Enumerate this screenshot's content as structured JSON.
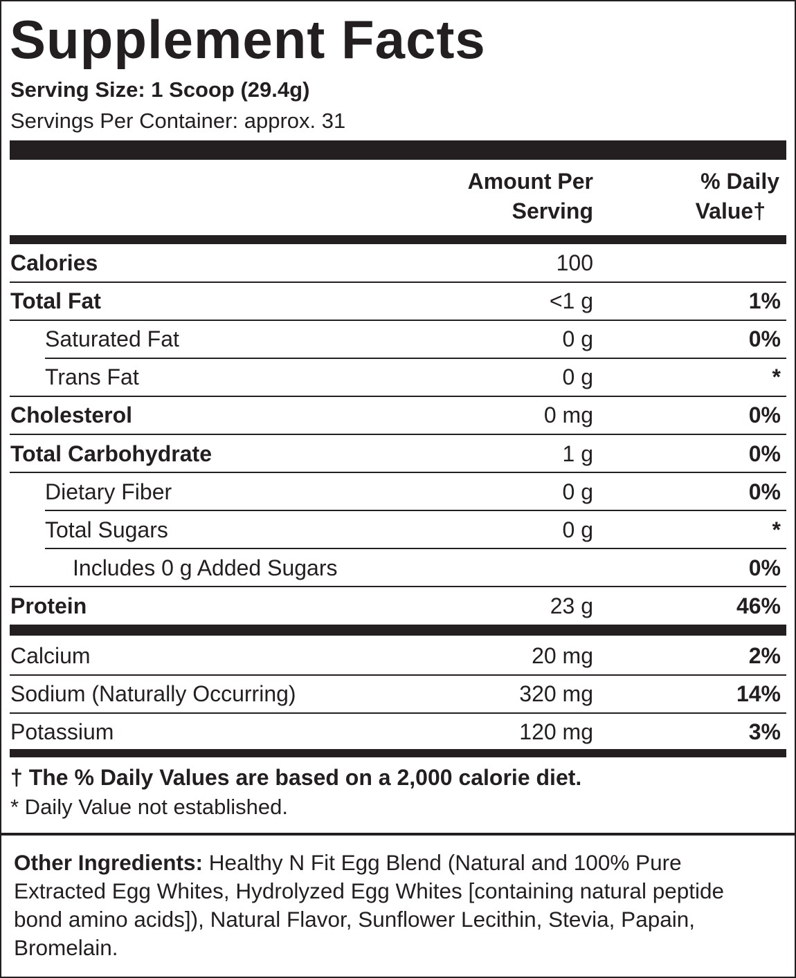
{
  "title": "Supplement Facts",
  "serving_size": "Serving Size: 1 Scoop (29.4g)",
  "servings_per_container": "Servings Per Container: approx. 31",
  "header": {
    "amount": [
      "Amount Per",
      "Serving"
    ],
    "daily_value": [
      "% Daily",
      "Value†"
    ]
  },
  "nutrients": [
    {
      "name": "Calories",
      "amount": "100"
    },
    {
      "name": "Total Fat",
      "amount": "<1 g",
      "daily_value": "1%"
    },
    {
      "name": "Saturated Fat",
      "amount": "0 g",
      "daily_value": "0%"
    },
    {
      "name": "Trans Fat",
      "amount": "0 g",
      "daily_value": "*"
    },
    {
      "name": "Cholesterol",
      "amount": "0 mg",
      "daily_value": "0%"
    },
    {
      "name": "Total Carbohydrate",
      "amount": "1 g",
      "daily_value": "0%"
    },
    {
      "name": "Dietary Fiber",
      "amount": "0 g",
      "daily_value": "0%"
    },
    {
      "name": "Total Sugars",
      "amount": "0 g",
      "daily_value": "*"
    },
    {
      "name": "Includes 0 g Added Sugars",
      "daily_value": "0%"
    },
    {
      "name": "Protein",
      "amount": "23 g",
      "daily_value": "46%"
    }
  ],
  "minerals": [
    {
      "name": "Calcium",
      "amount": "20 mg",
      "daily_value": "2%"
    },
    {
      "name": "Sodium (Naturally Occurring)",
      "amount": "320 mg",
      "daily_value": "14%"
    },
    {
      "name": "Potassium",
      "amount": "120 mg",
      "daily_value": "3%"
    }
  ],
  "footnotes": [
    "† The % Daily Values are based on a 2,000 calorie diet.",
    "* Daily Value not established."
  ],
  "other_ingredients": {
    "label": "Other Ingredients:",
    "text": " Healthy N Fit Egg Blend (Natural and 100% Pure Extracted Egg Whites, Hydrolyzed Egg Whites [containing natural peptide bond amino acids]), Natural Flavor, Sunflower Lecithin, Stevia, Papain, Bromelain."
  }
}
